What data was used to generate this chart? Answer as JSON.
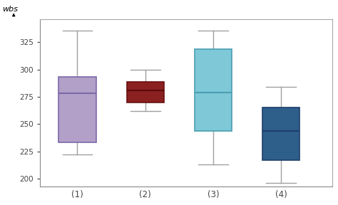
{
  "boxes": [
    {
      "label": "(1)",
      "whislo": 222,
      "q1": 233,
      "med": 278,
      "q3": 293,
      "whishi": 336,
      "color": "#b3a0c8",
      "edge_color": "#7b68a8",
      "median_color": "#7b68a8"
    },
    {
      "label": "(2)",
      "whislo": 262,
      "q1": 270,
      "med": 281,
      "q3": 289,
      "whishi": 300,
      "color": "#8b2020",
      "edge_color": "#6a1010",
      "median_color": "#5a0a0a"
    },
    {
      "label": "(3)",
      "whislo": 213,
      "q1": 244,
      "med": 279,
      "q3": 319,
      "whishi": 336,
      "color": "#7ec8d8",
      "edge_color": "#4a9fb0",
      "median_color": "#4a9fb0"
    },
    {
      "label": "(4)",
      "whislo": 196,
      "q1": 217,
      "med": 244,
      "q3": 265,
      "whishi": 284,
      "color": "#2e5f8a",
      "edge_color": "#1e3f6a",
      "median_color": "#1e3f6a"
    }
  ],
  "ylabel": "wbs",
  "ylim": [
    193,
    346
  ],
  "yticks": [
    200,
    225,
    250,
    275,
    300,
    325
  ],
  "background_color": "#ffffff",
  "box_width": 0.55,
  "whisker_color": "#a0a0a0",
  "cap_color": "#a0a0a0",
  "border_color": "#aaaaaa"
}
